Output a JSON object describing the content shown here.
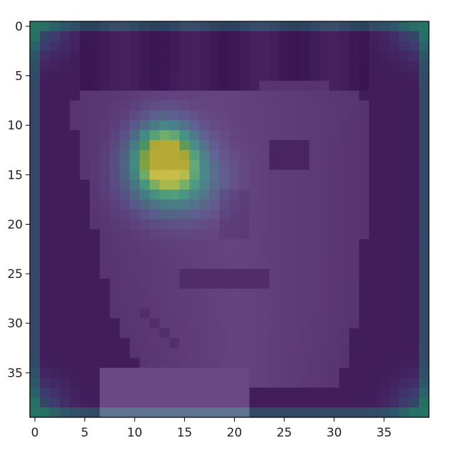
{
  "chart_data": {
    "type": "heatmap",
    "title": "",
    "xlabel": "",
    "ylabel": "",
    "grid_size": [
      40,
      40
    ],
    "xlim": [
      -0.5,
      39.5
    ],
    "ylim": [
      39.5,
      -0.5
    ],
    "x_ticks": [
      0,
      5,
      10,
      15,
      20,
      25,
      30,
      35
    ],
    "y_ticks": [
      0,
      5,
      10,
      15,
      20,
      25,
      30,
      35
    ],
    "x_tick_labels": [
      "0",
      "5",
      "10",
      "15",
      "20",
      "25",
      "30",
      "35"
    ],
    "y_tick_labels": [
      "0",
      "5",
      "10",
      "15",
      "20",
      "25",
      "30",
      "35"
    ],
    "y_axis_inverted": true,
    "grid": false,
    "colormap": "viridis",
    "overlay": "attention heatmap blended over grayscale face image",
    "hotspot": {
      "x": 13,
      "y": 13,
      "value": 1.0
    },
    "colors": {
      "low": "#440154",
      "mid": "#21918c",
      "high": "#fde725",
      "face_tint": "#7a4f86",
      "background_tint": "#4d2a64"
    }
  }
}
